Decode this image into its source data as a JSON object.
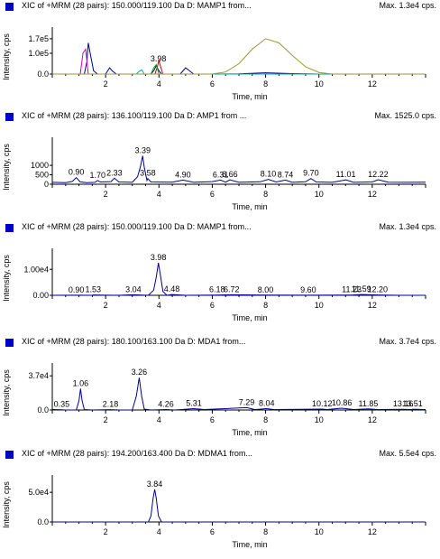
{
  "chart_data": [
    {
      "type": "line",
      "header": "XIC of +MRM (28 pairs): 150.000/119.100 Da  D: MAMP1 from...",
      "max_label": "Max. 1.3e4 cps.",
      "xlabel": "Time, min",
      "ylabel": "Intensity, cps",
      "xlim": [
        0,
        14
      ],
      "ylim": [
        0,
        200000
      ],
      "xticks": [
        "2",
        "4",
        "6",
        "8",
        "10",
        "12"
      ],
      "yticks": [
        {
          "value": 0,
          "label": "0.0"
        },
        {
          "value": 100000,
          "label": "1.0e5"
        },
        {
          "value": 170000,
          "label": "1.7e5"
        }
      ],
      "series": [
        {
          "color": "#000099",
          "x": [
            0.0,
            1.2,
            1.3,
            1.35,
            1.45,
            1.55,
            1.7,
            2.0,
            2.1,
            2.15,
            2.25,
            2.4,
            3.7,
            3.8,
            3.9,
            4.0,
            4.1,
            4.5,
            4.8,
            4.9,
            5.0,
            5.15,
            5.3,
            6.0,
            7.0,
            8.0,
            9.0,
            10.0,
            14.0
          ],
          "y": [
            0,
            0,
            60000,
            150000,
            80000,
            15000,
            0,
            0,
            20000,
            30000,
            15000,
            0,
            0,
            15000,
            40000,
            15000,
            0,
            0,
            0,
            15000,
            30000,
            15000,
            0,
            0,
            1000,
            6000,
            2000,
            0,
            0
          ]
        },
        {
          "color": "#cc00cc",
          "x": [
            0.0,
            1.05,
            1.15,
            1.25,
            1.35,
            14.0
          ],
          "y": [
            0,
            0,
            100000,
            120000,
            0,
            0
          ]
        },
        {
          "color": "#cc0000",
          "x": [
            0.0,
            3.85,
            3.95,
            4.0,
            4.05,
            4.15,
            14.0
          ],
          "y": [
            0,
            0,
            40000,
            65000,
            40000,
            0,
            0
          ]
        },
        {
          "color": "#00aa00",
          "x": [
            0.0,
            3.7,
            3.8,
            3.9,
            4.0,
            14.0
          ],
          "y": [
            0,
            0,
            30000,
            45000,
            0,
            0
          ]
        },
        {
          "color": "#00aaaa",
          "x": [
            0.0,
            3.15,
            3.25,
            3.35,
            3.45,
            14.0
          ],
          "y": [
            0,
            0,
            12000,
            20000,
            0,
            0
          ]
        },
        {
          "color": "#999933",
          "x": [
            0.0,
            6.0,
            6.5,
            7.0,
            7.5,
            8.0,
            8.5,
            9.0,
            9.5,
            10.0,
            10.5,
            14.0
          ],
          "y": [
            0,
            0,
            10000,
            50000,
            120000,
            170000,
            150000,
            90000,
            35000,
            8000,
            0,
            0
          ]
        }
      ],
      "annotations": [
        {
          "x": 3.98,
          "label": "3.98",
          "y": 48000
        }
      ]
    },
    {
      "type": "line",
      "header": "XIC of +MRM (28 pairs): 136.100/119.100 Da  D: AMP1 from ...",
      "max_label": "Max. 1525.0 cps.",
      "xlabel": "Time, min",
      "ylabel": "Intensity, cps",
      "xlim": [
        0,
        14
      ],
      "ylim": [
        0,
        2200
      ],
      "xticks": [
        "2",
        "4",
        "6",
        "8",
        "10",
        "12"
      ],
      "yticks": [
        {
          "value": 0,
          "label": "0"
        },
        {
          "value": 500,
          "label": "500"
        },
        {
          "value": 1000,
          "label": "1000"
        }
      ],
      "series": [
        {
          "color": "#000099",
          "x": [
            0.0,
            0.5,
            0.75,
            0.9,
            1.05,
            1.3,
            1.6,
            1.7,
            1.8,
            2.2,
            2.33,
            2.5,
            3.0,
            3.2,
            3.3,
            3.39,
            3.45,
            3.55,
            3.58,
            3.7,
            4.5,
            4.9,
            5.3,
            6.0,
            6.31,
            6.5,
            6.66,
            7.0,
            7.8,
            8.1,
            8.4,
            8.74,
            9.0,
            9.5,
            9.7,
            9.9,
            10.5,
            11.01,
            11.3,
            12.0,
            12.22,
            12.6,
            13.3,
            14.0
          ],
          "y": [
            100,
            80,
            150,
            350,
            120,
            80,
            100,
            200,
            120,
            140,
            320,
            120,
            100,
            400,
            900,
            1500,
            900,
            200,
            300,
            120,
            110,
            220,
            100,
            140,
            220,
            110,
            230,
            100,
            130,
            260,
            120,
            220,
            100,
            130,
            300,
            120,
            100,
            230,
            100,
            120,
            240,
            110,
            100,
            110
          ]
        }
      ],
      "annotations": [
        {
          "x": 0.9,
          "label": "0.90",
          "y": 350
        },
        {
          "x": 1.7,
          "label": "1.70",
          "y": 200
        },
        {
          "x": 2.33,
          "label": "2.33",
          "y": 320
        },
        {
          "x": 3.39,
          "label": "3.39",
          "y": 1500
        },
        {
          "x": 3.58,
          "label": "3.58",
          "y": 300
        },
        {
          "x": 4.9,
          "label": "4.90",
          "y": 220
        },
        {
          "x": 6.31,
          "label": "6.31",
          "y": 220
        },
        {
          "x": 6.66,
          "label": "6.66",
          "y": 230
        },
        {
          "x": 8.1,
          "label": "8.10",
          "y": 260
        },
        {
          "x": 8.74,
          "label": "8.74",
          "y": 220
        },
        {
          "x": 9.7,
          "label": "9.70",
          "y": 300
        },
        {
          "x": 11.01,
          "label": "11.01",
          "y": 230
        },
        {
          "x": 12.22,
          "label": "12.22",
          "y": 240
        }
      ]
    },
    {
      "type": "line",
      "header": "XIC of +MRM (28 pairs): 150.000/119.100 Da  D: MAMP1 from...",
      "max_label": "Max. 1.3e4 cps.",
      "xlabel": "Time, min",
      "ylabel": "Intensity, cps",
      "xlim": [
        0,
        14
      ],
      "ylim": [
        0,
        16000
      ],
      "xticks": [
        "2",
        "4",
        "6",
        "8",
        "10",
        "12"
      ],
      "yticks": [
        {
          "value": 0,
          "label": "0.00"
        },
        {
          "value": 10000,
          "label": "1.00e4"
        }
      ],
      "series": [
        {
          "color": "#000099",
          "x": [
            0.0,
            0.9,
            1.5,
            1.53,
            2.5,
            3.04,
            3.6,
            3.8,
            3.9,
            3.98,
            4.05,
            4.15,
            4.3,
            4.48,
            5.0,
            6.18,
            6.72,
            8.0,
            9.6,
            11.23,
            11.59,
            12.2,
            13.0,
            14.0
          ],
          "y": [
            0,
            20,
            0,
            150,
            0,
            200,
            0,
            2000,
            7000,
            12500,
            8000,
            1500,
            0,
            300,
            0,
            100,
            200,
            80,
            50,
            100,
            300,
            150,
            0,
            0
          ]
        }
      ],
      "annotations": [
        {
          "x": 0.9,
          "label": "0.90",
          "y": 20
        },
        {
          "x": 1.53,
          "label": "1.53",
          "y": 150
        },
        {
          "x": 3.04,
          "label": "3.04",
          "y": 200
        },
        {
          "x": 3.98,
          "label": "3.98",
          "y": 12500
        },
        {
          "x": 4.48,
          "label": "4.48",
          "y": 300
        },
        {
          "x": 6.18,
          "label": "6.18",
          "y": 100
        },
        {
          "x": 6.72,
          "label": "6.72",
          "y": 200
        },
        {
          "x": 8.0,
          "label": "8.00",
          "y": 80
        },
        {
          "x": 9.6,
          "label": "9.60",
          "y": 50
        },
        {
          "x": 11.23,
          "label": "11.23",
          "y": 100
        },
        {
          "x": 11.59,
          "label": "11.59",
          "y": 300
        },
        {
          "x": 12.2,
          "label": "12.20",
          "y": 150
        }
      ]
    },
    {
      "type": "line",
      "header": "XIC of +MRM (28 pairs): 180.100/163.100 Da  D: MDA1 from...",
      "max_label": "Max. 3.7e4 cps.",
      "xlabel": "Time, min",
      "ylabel": "Intensity, cps",
      "xlim": [
        0,
        14
      ],
      "ylim": [
        0,
        45000
      ],
      "xticks": [
        "2",
        "4",
        "6",
        "8",
        "10",
        "12"
      ],
      "yticks": [
        {
          "value": 0,
          "label": "0.0"
        },
        {
          "value": 37000,
          "label": "3.7e4"
        }
      ],
      "series": [
        {
          "color": "#000099",
          "x": [
            0.0,
            0.35,
            0.5,
            0.9,
            1.0,
            1.06,
            1.12,
            1.2,
            1.5,
            2.18,
            2.5,
            3.0,
            3.15,
            3.26,
            3.35,
            3.45,
            3.7,
            4.26,
            4.6,
            5.31,
            5.7,
            7.29,
            7.6,
            8.04,
            8.3,
            10.12,
            10.3,
            10.86,
            11.3,
            11.85,
            12.2,
            13.16,
            13.5,
            13.51,
            14.0
          ],
          "y": [
            500,
            300,
            0,
            0,
            10000,
            23000,
            10000,
            500,
            0,
            400,
            0,
            0,
            15000,
            35000,
            15000,
            1000,
            0,
            500,
            0,
            1500,
            500,
            2500,
            500,
            1500,
            500,
            1000,
            500,
            2000,
            500,
            1200,
            500,
            800,
            500,
            900,
            500
          ]
        }
      ],
      "annotations": [
        {
          "x": 0.35,
          "label": "0.35",
          "y": 300
        },
        {
          "x": 1.06,
          "label": "1.06",
          "y": 23000
        },
        {
          "x": 2.18,
          "label": "2.18",
          "y": 400
        },
        {
          "x": 3.26,
          "label": "3.26",
          "y": 35000
        },
        {
          "x": 4.26,
          "label": "4.26",
          "y": 500
        },
        {
          "x": 5.31,
          "label": "5.31",
          "y": 1500
        },
        {
          "x": 7.29,
          "label": "7.29",
          "y": 2500
        },
        {
          "x": 8.04,
          "label": "8.04",
          "y": 1500
        },
        {
          "x": 10.12,
          "label": "10.12",
          "y": 1000
        },
        {
          "x": 10.86,
          "label": "10.86",
          "y": 2000
        },
        {
          "x": 11.85,
          "label": "11.85",
          "y": 1200
        },
        {
          "x": 13.16,
          "label": "13.16",
          "y": 800
        },
        {
          "x": 13.51,
          "label": "13.51",
          "y": 900
        }
      ]
    },
    {
      "type": "line",
      "header": "XIC of +MRM (28 pairs): 194.200/163.400 Da  D: MDMA1 from...",
      "max_label": "Max. 5.5e4 cps.",
      "xlabel": "Time, min",
      "ylabel": "Intensity, cps",
      "xlim": [
        0,
        14
      ],
      "ylim": [
        0,
        70000
      ],
      "xticks": [
        "2",
        "4",
        "6",
        "8",
        "10",
        "12"
      ],
      "yticks": [
        {
          "value": 0,
          "label": "0.0"
        },
        {
          "value": 50000,
          "label": "5.0e4"
        }
      ],
      "series": [
        {
          "color": "#000099",
          "x": [
            0.0,
            3.6,
            3.7,
            3.78,
            3.84,
            3.9,
            3.98,
            4.1,
            14.0
          ],
          "y": [
            0,
            0,
            10000,
            40000,
            55000,
            40000,
            10000,
            0,
            0
          ]
        }
      ],
      "annotations": [
        {
          "x": 3.84,
          "label": "3.84",
          "y": 55000
        }
      ]
    }
  ]
}
